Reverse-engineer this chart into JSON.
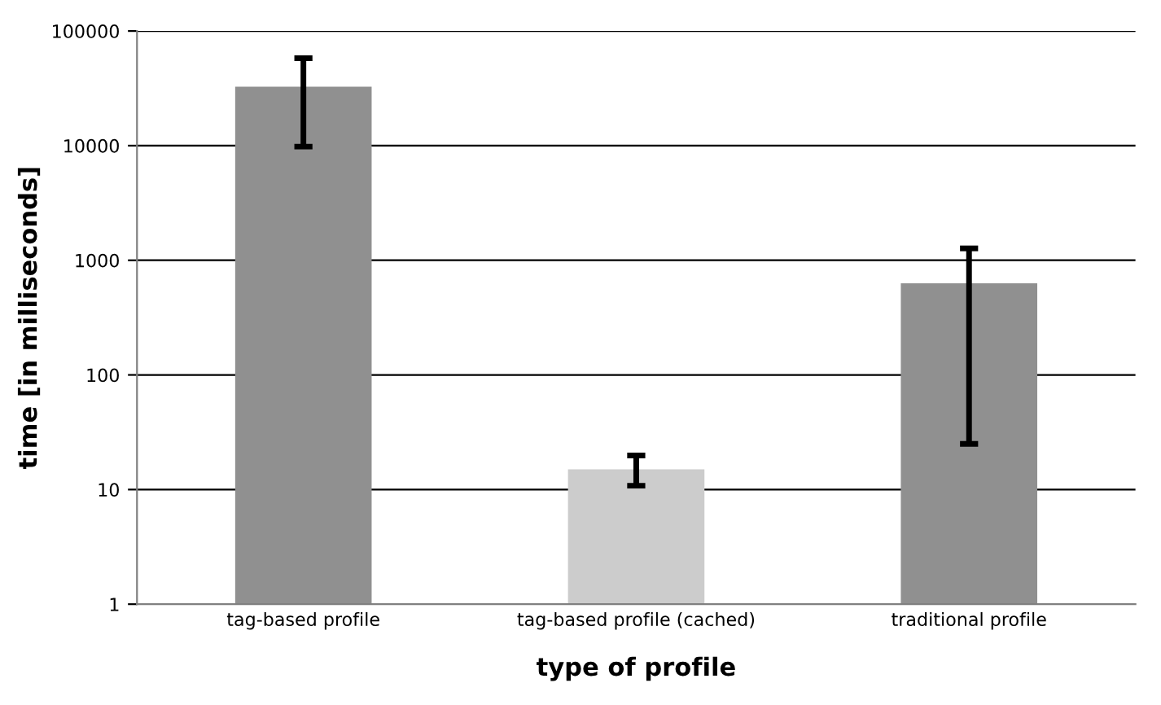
{
  "chart_data": {
    "type": "bar",
    "xlabel": "type of profile",
    "ylabel": "time [in milliseconds]",
    "categories": [
      "tag-based profile",
      "tag-based profile (cached)",
      "traditional profile"
    ],
    "values": [
      32700,
      15,
      630
    ],
    "colors": [
      "#909090",
      "#cccccc",
      "#909090"
    ],
    "errors": [
      [
        9800,
        58000
      ],
      [
        10.8,
        19.8
      ],
      [
        25,
        1270
      ]
    ],
    "log": "y",
    "ylim": [
      1,
      100000
    ],
    "yticks": [
      1,
      10,
      100,
      1000,
      10000,
      100000
    ],
    "grid": "y",
    "legend": false
  }
}
